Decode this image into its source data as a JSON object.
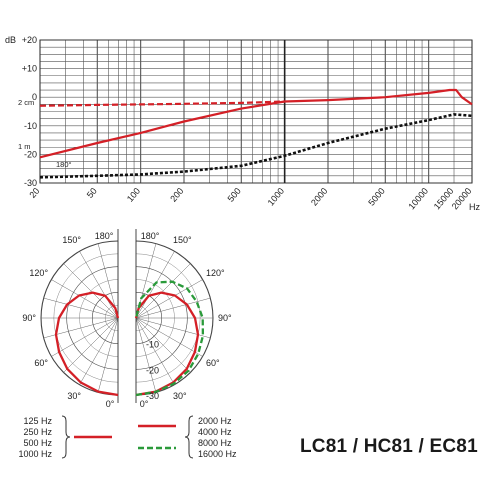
{
  "model_title": "LC81 / HC81 / EC81",
  "colors": {
    "red": "#d42027",
    "black": "#111111",
    "green": "#2a9a3a",
    "grid": "#444444"
  },
  "chart_data": [
    {
      "type": "line",
      "title": "",
      "ylabel": "dB",
      "xlabel": "Hz",
      "xscale": "log",
      "xlim": [
        20,
        20000
      ],
      "ylim": [
        -30,
        20
      ],
      "y_ticks": [
        "+20",
        "+10",
        "0",
        "-10",
        "-20",
        "-30"
      ],
      "y_tick_values": [
        20,
        10,
        0,
        -10,
        -20,
        -30
      ],
      "x_ticks": [
        "20",
        "50",
        "100",
        "200",
        "500",
        "1000",
        "2000",
        "5000",
        "10000",
        "15000",
        "20000"
      ],
      "x_tick_values": [
        20,
        50,
        100,
        200,
        500,
        1000,
        2000,
        5000,
        10000,
        15000,
        20000
      ],
      "grid": true,
      "annotations": [
        "2 cm",
        "1 m",
        "180°"
      ],
      "series": [
        {
          "name": "2 cm",
          "style": "dashed",
          "color": "red",
          "x": [
            20,
            50,
            100,
            200,
            500,
            1000
          ],
          "y": [
            -3,
            -2.7,
            -2.5,
            -2.3,
            -2,
            -1.5
          ]
        },
        {
          "name": "1 m",
          "style": "solid",
          "color": "red",
          "x": [
            20,
            50,
            100,
            200,
            500,
            1000,
            2000,
            5000,
            10000,
            14000,
            15500,
            17000,
            20000
          ],
          "y": [
            -21,
            -16,
            -12.5,
            -8.5,
            -4,
            -1.5,
            -1,
            0,
            1.5,
            2.5,
            2.5,
            0,
            -2.5
          ]
        },
        {
          "name": "180°",
          "style": "dotted",
          "color": "black",
          "x": [
            20,
            50,
            100,
            200,
            500,
            1000,
            2000,
            5000,
            10000,
            15000,
            20000
          ],
          "y": [
            -28,
            -27.5,
            -27,
            -26,
            -24,
            -20.5,
            -16,
            -11,
            -8,
            -6,
            -6.5
          ]
        }
      ]
    },
    {
      "type": "polar",
      "title": "",
      "angle_labels": [
        "0°",
        "30°",
        "60°",
        "90°",
        "120°",
        "150°",
        "180°"
      ],
      "radial_labels": [
        "-10",
        "-20",
        "-30"
      ],
      "radial_values": [
        -10,
        -20,
        -30
      ],
      "rlim": [
        -30,
        0
      ],
      "left_half": {
        "legend_labels": [
          "125 Hz",
          "250 Hz",
          "500 Hz",
          "1000 Hz"
        ],
        "series": [
          {
            "name": "125 Hz / 250 Hz / 500 Hz / 1000 Hz",
            "style": "solid",
            "color": "red",
            "angle_deg": [
              0,
              15,
              30,
              45,
              60,
              75,
              90,
              105,
              120,
              135,
              150,
              165,
              180
            ],
            "db": [
              0,
              -0.3,
              -1,
              -2,
              -3.5,
              -5,
              -7,
              -9.5,
              -12.5,
              -16,
              -20,
              -26,
              -30
            ]
          }
        ]
      },
      "right_half": {
        "legend_labels": [
          "2000 Hz",
          "4000 Hz",
          "8000 Hz",
          "16000 Hz"
        ],
        "series": [
          {
            "name": "2000 Hz / 4000 Hz",
            "style": "solid",
            "color": "red",
            "angle_deg": [
              0,
              15,
              30,
              45,
              60,
              75,
              90,
              105,
              120,
              135,
              150,
              165,
              180
            ],
            "db": [
              0,
              -0.3,
              -1,
              -2,
              -3.5,
              -5,
              -7,
              -9.5,
              -12.5,
              -16,
              -20,
              -26,
              -30
            ]
          },
          {
            "name": "8000 Hz / 16000 Hz",
            "style": "dashed",
            "color": "green",
            "angle_deg": [
              0,
              15,
              30,
              45,
              60,
              75,
              90,
              105,
              120,
              135,
              150,
              165,
              180
            ],
            "db": [
              0,
              -0.2,
              -0.5,
              -1,
              -2,
              -3,
              -4,
              -5.5,
              -7,
              -10,
              -14,
              -22,
              -30
            ]
          }
        ]
      }
    }
  ]
}
